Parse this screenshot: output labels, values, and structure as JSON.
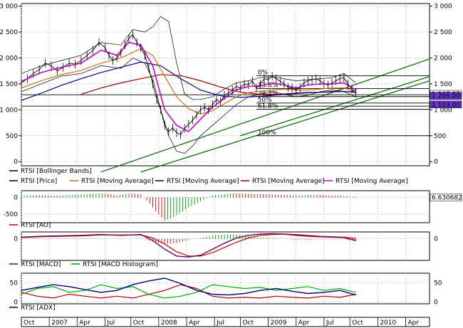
{
  "chart_data": [
    {
      "type": "line",
      "panel": "price",
      "y_ticks_right": [
        "3 000",
        "2 500",
        "2 000",
        "1 500",
        "1 000",
        "500",
        "0"
      ],
      "y_ticks_left": [
        "3 000",
        "2 500",
        "2 000",
        "1 500",
        "1 000",
        "500",
        "0"
      ],
      "ylim": [
        -80,
        3050
      ],
      "grid": true,
      "fib_labels": [
        "0%",
        "23.6%",
        "38.2%",
        "50%",
        "61.8%",
        "100%"
      ],
      "fib_levels": [
        1658,
        1410,
        1255,
        1130,
        1010,
        500
      ],
      "value_tags": [
        "1 307.35",
        "1 269.00",
        "1 103.00"
      ],
      "legend": [
        "RTSI [Bollinger Bands]",
        "RTSI [Price]",
        "RTSI [Moving Average]",
        "RTSI [Moving Average]",
        "RTSI [Moving Average]",
        "RTSI [Moving Average]"
      ],
      "colors": {
        "price": "#000000",
        "bollinger": "#000000",
        "ma_fast": "#cc00cc",
        "ma_mid": "#cc6600",
        "ma_slow": "#000080",
        "ma_long": "#990000",
        "trend": "#006600",
        "tag": "#6633cc"
      },
      "series": [
        {
          "name": "RTSI [Price]",
          "x": [
            0,
            3,
            6,
            9,
            12,
            15,
            18,
            21,
            24,
            27,
            30,
            33,
            36,
            39,
            42,
            44,
            46,
            48,
            50,
            52,
            54,
            56,
            58,
            60,
            62,
            64,
            66,
            68,
            70,
            72,
            74,
            76,
            78,
            80,
            82,
            84,
            86,
            88,
            90,
            92,
            94,
            96,
            98,
            100,
            102,
            104,
            106,
            108,
            110,
            112,
            114,
            116,
            118,
            120,
            122,
            124,
            126,
            128,
            130,
            132,
            134,
            136,
            138,
            140,
            142,
            144,
            146,
            148,
            150,
            152,
            154,
            156,
            158,
            160,
            162,
            164,
            166,
            168
          ],
          "y": [
            1520,
            1600,
            1700,
            1780,
            1900,
            1850,
            1750,
            1820,
            1900,
            1880,
            1950,
            2050,
            2150,
            2300,
            2200,
            2050,
            1950,
            2000,
            2100,
            2250,
            2380,
            2450,
            2300,
            2200,
            2050,
            1800,
            1500,
            1200,
            1000,
            700,
            580,
            650,
            560,
            520,
            640,
            720,
            800,
            900,
            1000,
            1050,
            1000,
            1100,
            1200,
            1150,
            1280,
            1320,
            1380,
            1450,
            1420,
            1500,
            1480,
            1560,
            1420,
            1500,
            1600,
            1580,
            1650,
            1600,
            1550,
            1500,
            1430,
            1420,
            1380,
            1430,
            1520,
            1560,
            1580,
            1600,
            1560,
            1500,
            1480,
            1520,
            1560,
            1600,
            1620,
            1500,
            1400,
            1320
          ]
        },
        {
          "name": "RTSI [Moving Average] fast",
          "x": [
            0,
            10,
            20,
            30,
            40,
            48,
            54,
            60,
            66,
            72,
            78,
            84,
            90,
            96,
            102,
            108,
            114,
            120,
            126,
            132,
            138,
            144,
            150,
            156,
            162,
            168
          ],
          "y": [
            1550,
            1720,
            1820,
            1900,
            2150,
            2050,
            2300,
            2250,
            1850,
            1000,
            700,
            580,
            820,
            1050,
            1220,
            1380,
            1450,
            1460,
            1520,
            1480,
            1420,
            1480,
            1500,
            1500,
            1520,
            1380
          ]
        },
        {
          "name": "RTSI [Moving Average] mid",
          "x": [
            0,
            10,
            20,
            30,
            40,
            50,
            60,
            66,
            72,
            78,
            84,
            90,
            96,
            102,
            108,
            114,
            120,
            126,
            132,
            138,
            144,
            150,
            156,
            162,
            168
          ],
          "y": [
            1420,
            1560,
            1680,
            1760,
            1900,
            2000,
            2180,
            2050,
            1650,
            1250,
            1020,
            920,
            980,
            1120,
            1250,
            1330,
            1360,
            1380,
            1400,
            1380,
            1380,
            1400,
            1420,
            1420,
            1350
          ]
        },
        {
          "name": "RTSI [Moving Average] slow",
          "x": [
            0,
            10,
            20,
            30,
            40,
            50,
            60,
            70,
            80,
            90,
            100,
            110,
            120,
            130,
            140,
            150,
            160,
            168
          ],
          "y": [
            1180,
            1320,
            1470,
            1600,
            1720,
            1820,
            1920,
            1850,
            1600,
            1380,
            1270,
            1240,
            1260,
            1290,
            1320,
            1340,
            1360,
            1340
          ]
        },
        {
          "name": "RTSI [Moving Average] long",
          "x": [
            30,
            40,
            50,
            60,
            70,
            80,
            90,
            100,
            110,
            120,
            130,
            140,
            150,
            160,
            168
          ],
          "y": [
            1300,
            1420,
            1520,
            1600,
            1680,
            1660,
            1560,
            1440,
            1340,
            1300,
            1300,
            1330,
            1340,
            1350,
            1350
          ]
        },
        {
          "name": "RTSI [Bollinger Bands] upper",
          "x": [
            0,
            10,
            20,
            30,
            40,
            50,
            56,
            62,
            66,
            70,
            74,
            78,
            82,
            86,
            90,
            96,
            102,
            108,
            114,
            120,
            126,
            132,
            138,
            144,
            150,
            156,
            162,
            168
          ],
          "y": [
            1700,
            1850,
            1950,
            2050,
            2300,
            2250,
            2550,
            2500,
            2600,
            2800,
            2700,
            1900,
            1300,
            1200,
            1200,
            1250,
            1400,
            1520,
            1560,
            1620,
            1640,
            1600,
            1560,
            1580,
            1600,
            1620,
            1700,
            1520
          ]
        },
        {
          "name": "RTSI [Bollinger Bands] lower",
          "x": [
            0,
            10,
            20,
            30,
            40,
            50,
            56,
            62,
            66,
            70,
            74,
            78,
            82,
            86,
            90,
            96,
            102,
            108,
            114,
            120,
            126,
            132,
            138,
            144,
            150,
            156,
            162,
            168
          ],
          "y": [
            1350,
            1500,
            1650,
            1700,
            1850,
            1800,
            2000,
            1900,
            1600,
            1000,
            500,
            200,
            160,
            300,
            500,
            700,
            900,
            1100,
            1250,
            1300,
            1350,
            1300,
            1250,
            1280,
            1350,
            1380,
            1350,
            1250
          ]
        }
      ]
    },
    {
      "type": "bar",
      "panel": "AO",
      "title_label": "RTSI [AO]",
      "y_ticks": [
        "0",
        "-500"
      ],
      "ylim": [
        -750,
        200
      ],
      "value_tag": "6.630682",
      "x": [
        0,
        6,
        12,
        18,
        24,
        30,
        36,
        42,
        48,
        54,
        60,
        64,
        68,
        72,
        76,
        80,
        84,
        88,
        92,
        96,
        100,
        106,
        112,
        118,
        124,
        130,
        136,
        142,
        148,
        154,
        160,
        166
      ],
      "values": [
        60,
        70,
        60,
        50,
        70,
        90,
        110,
        120,
        60,
        120,
        90,
        -150,
        -450,
        -680,
        -600,
        -450,
        -300,
        -180,
        -50,
        60,
        90,
        120,
        110,
        100,
        90,
        80,
        60,
        70,
        80,
        60,
        50,
        20
      ]
    },
    {
      "type": "line",
      "panel": "MACD",
      "legend": [
        "RTSI [MACD]",
        "RTSI [MACD Histogram]"
      ],
      "y_ticks": [
        "0"
      ],
      "ylim": [
        -250,
        80
      ],
      "x": [
        0,
        10,
        20,
        30,
        40,
        50,
        60,
        66,
        72,
        78,
        84,
        90,
        96,
        102,
        108,
        114,
        120,
        126,
        132,
        138,
        144,
        150,
        156,
        162,
        168
      ],
      "macd": [
        20,
        30,
        35,
        40,
        50,
        40,
        50,
        -20,
        -120,
        -200,
        -210,
        -190,
        -120,
        -50,
        10,
        40,
        55,
        60,
        55,
        40,
        30,
        25,
        20,
        15,
        -20
      ],
      "signal": [
        15,
        25,
        30,
        35,
        45,
        45,
        45,
        10,
        -60,
        -150,
        -200,
        -200,
        -160,
        -100,
        -40,
        10,
        40,
        50,
        55,
        50,
        40,
        30,
        25,
        20,
        5
      ],
      "histogram": [
        5,
        5,
        5,
        5,
        5,
        -5,
        5,
        -30,
        -60,
        -50,
        -10,
        10,
        40,
        50,
        50,
        30,
        15,
        10,
        0,
        -10,
        -10,
        -5,
        -5,
        -5,
        -25
      ]
    },
    {
      "type": "line",
      "panel": "ADX",
      "title_label": "RTSI [ADX]",
      "y_ticks": [
        "50",
        "0"
      ],
      "ylim": [
        -5,
        75
      ],
      "x": [
        0,
        8,
        16,
        24,
        32,
        40,
        48,
        56,
        64,
        72,
        80,
        88,
        96,
        104,
        112,
        120,
        128,
        136,
        144,
        152,
        160,
        168
      ],
      "adx": [
        30,
        38,
        45,
        40,
        32,
        25,
        30,
        45,
        55,
        62,
        48,
        30,
        20,
        18,
        22,
        30,
        35,
        28,
        22,
        25,
        30,
        18
      ],
      "plus_di": [
        20,
        35,
        40,
        25,
        30,
        45,
        35,
        40,
        20,
        10,
        15,
        25,
        45,
        40,
        35,
        38,
        30,
        35,
        40,
        30,
        35,
        25
      ],
      "minus_di": [
        25,
        15,
        10,
        20,
        15,
        10,
        15,
        10,
        20,
        30,
        45,
        35,
        15,
        10,
        12,
        10,
        15,
        12,
        10,
        15,
        12,
        20
      ],
      "colors": {
        "adx": "#000080",
        "plus_di": "#00aa00",
        "minus_di": "#aa0000"
      }
    },
    {
      "type": "axis",
      "panel": "time",
      "x_ticks": [
        "Oct",
        "2007",
        "Apr",
        "Jul",
        "Oct",
        "2008",
        "Apr",
        "Jul",
        "Oct",
        "2009",
        "Apr",
        "Jul",
        "Oct",
        "2010",
        "Apr"
      ],
      "x_positions": [
        0,
        14,
        28,
        42,
        55,
        69,
        83,
        97,
        110,
        124,
        138,
        152,
        165,
        179,
        193
      ],
      "x_range": [
        0,
        205
      ]
    }
  ]
}
